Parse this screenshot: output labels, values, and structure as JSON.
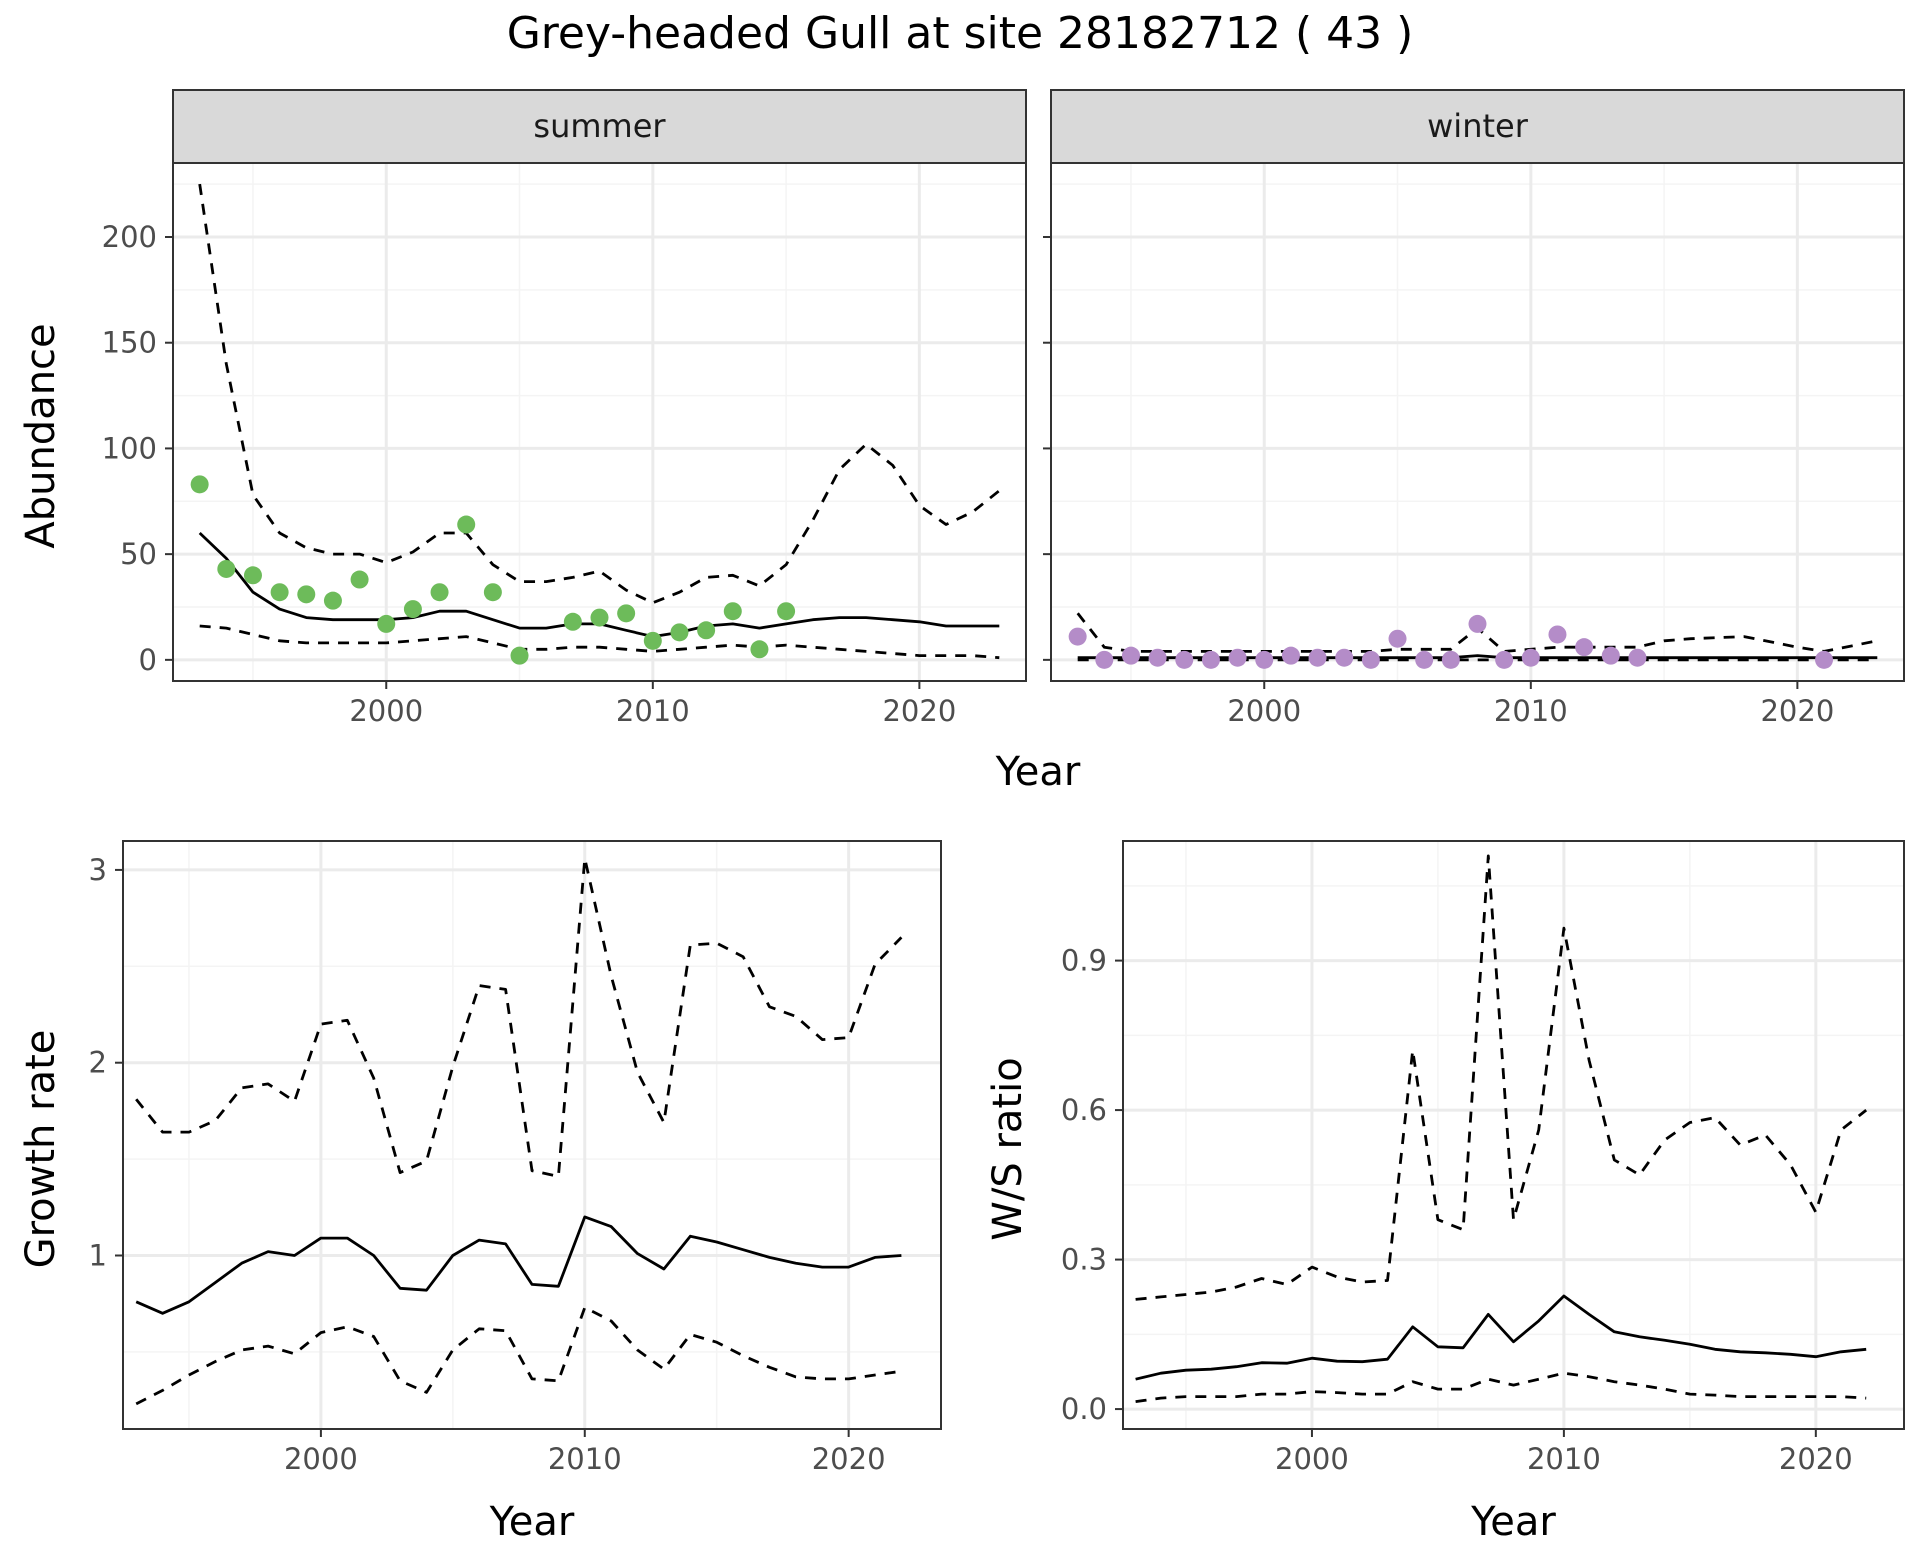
{
  "title": "Grey-headed Gull at site 28182712 ( 43 )",
  "colors": {
    "summer_points": "#6dbb5a",
    "winter_points": "#b48cc8",
    "line": "#000000",
    "strip_fill": "#d9d9d9",
    "grid_major": "#ebebeb",
    "grid_minor": "#f4f4f4",
    "panel_border": "#333333"
  },
  "chart_data": [
    {
      "type": "line",
      "panel": "summer",
      "strip_label": "summer",
      "xlabel": "Year",
      "ylabel": "Abundance",
      "xlim": [
        1992,
        2024
      ],
      "ylim": [
        -10,
        235
      ],
      "xticks": [
        2000,
        2010,
        2020
      ],
      "yticks": [
        0,
        50,
        100,
        150,
        200
      ],
      "grid": true,
      "points": {
        "x": [
          1993,
          1994,
          1995,
          1996,
          1997,
          1998,
          1999,
          2000,
          2001,
          2002,
          2003,
          2004,
          2005,
          2007,
          2008,
          2009,
          2010,
          2011,
          2012,
          2013,
          2014,
          2015
        ],
        "y": [
          83,
          43,
          40,
          32,
          31,
          28,
          38,
          17,
          24,
          32,
          64,
          32,
          2,
          18,
          20,
          22,
          9,
          13,
          14,
          23,
          5,
          23
        ]
      },
      "series": [
        {
          "style": "solid",
          "x": [
            1993,
            1994,
            1995,
            1996,
            1997,
            1998,
            1999,
            2000,
            2001,
            2002,
            2003,
            2004,
            2005,
            2006,
            2007,
            2008,
            2009,
            2010,
            2011,
            2012,
            2013,
            2014,
            2015,
            2016,
            2017,
            2018,
            2019,
            2020,
            2021,
            2022,
            2023
          ],
          "y": [
            60,
            48,
            32,
            24,
            20,
            19,
            19,
            19,
            20,
            23,
            23,
            19,
            15,
            15,
            17,
            17,
            14,
            11,
            13,
            16,
            17,
            15,
            17,
            19,
            20,
            20,
            19,
            18,
            16,
            16,
            16
          ]
        },
        {
          "style": "dashed",
          "x": [
            1993,
            1994,
            1995,
            1996,
            1997,
            1998,
            1999,
            2000,
            2001,
            2002,
            2003,
            2004,
            2005,
            2006,
            2007,
            2008,
            2009,
            2010,
            2011,
            2012,
            2013,
            2014,
            2015,
            2016,
            2017,
            2018,
            2019,
            2020,
            2021,
            2022,
            2023
          ],
          "y": [
            225,
            140,
            78,
            60,
            53,
            50,
            50,
            46,
            51,
            60,
            60,
            45,
            37,
            37,
            39,
            42,
            33,
            27,
            32,
            39,
            40,
            35,
            45,
            66,
            90,
            102,
            92,
            73,
            64,
            70,
            80
          ]
        },
        {
          "style": "dashed",
          "x": [
            1993,
            1994,
            1995,
            1996,
            1997,
            1998,
            1999,
            2000,
            2001,
            2002,
            2003,
            2004,
            2005,
            2006,
            2007,
            2008,
            2009,
            2010,
            2011,
            2012,
            2013,
            2014,
            2015,
            2016,
            2017,
            2018,
            2019,
            2020,
            2021,
            2022,
            2023
          ],
          "y": [
            16,
            15,
            12,
            9,
            8,
            8,
            8,
            8,
            9,
            10,
            11,
            8,
            5,
            5,
            6,
            6,
            5,
            4,
            5,
            6,
            7,
            6,
            7,
            6,
            5,
            4,
            3,
            2,
            2,
            2,
            1
          ]
        }
      ]
    },
    {
      "type": "line",
      "panel": "winter",
      "strip_label": "winter",
      "xlabel": "Year",
      "ylabel": "Abundance",
      "xlim": [
        1992,
        2024
      ],
      "ylim": [
        -10,
        235
      ],
      "xticks": [
        2000,
        2010,
        2020
      ],
      "yticks": [
        0,
        50,
        100,
        150,
        200
      ],
      "grid": true,
      "points": {
        "x": [
          1993,
          1994,
          1995,
          1996,
          1997,
          1998,
          1999,
          2000,
          2001,
          2002,
          2003,
          2004,
          2005,
          2006,
          2007,
          2008,
          2009,
          2010,
          2011,
          2012,
          2013,
          2014,
          2021
        ],
        "y": [
          11,
          0,
          2,
          1,
          0,
          0,
          1,
          0,
          2,
          1,
          1,
          0,
          10,
          0,
          0,
          17,
          0,
          1,
          12,
          6,
          2,
          1,
          0
        ]
      },
      "series": [
        {
          "style": "solid",
          "x": [
            1993,
            1995,
            2000,
            2005,
            2007,
            2008,
            2009,
            2011,
            2015,
            2020,
            2023
          ],
          "y": [
            1,
            1,
            1,
            1,
            1,
            2,
            1,
            1,
            1,
            1,
            1
          ]
        },
        {
          "style": "dashed",
          "x": [
            1993,
            1994,
            1995,
            1998,
            2000,
            2004,
            2005,
            2007,
            2008,
            2009,
            2011,
            2014,
            2015,
            2016,
            2018,
            2020,
            2021,
            2023
          ],
          "y": [
            22,
            6,
            4,
            4,
            4,
            4,
            5,
            5,
            15,
            4,
            6,
            6,
            9,
            10,
            11,
            6,
            4,
            9
          ]
        },
        {
          "style": "dashed",
          "x": [
            1993,
            1995,
            2000,
            2005,
            2010,
            2015,
            2020,
            2021,
            2023
          ],
          "y": [
            0,
            0,
            0,
            0,
            0,
            0,
            0,
            0,
            0
          ]
        }
      ]
    },
    {
      "type": "line",
      "panel": "growth",
      "xlabel": "Year",
      "ylabel": "Growth rate",
      "xlim": [
        1992.5,
        2023.5
      ],
      "ylim": [
        0.1,
        3.15
      ],
      "xticks": [
        2000,
        2010,
        2020
      ],
      "yticks": [
        1,
        2,
        3
      ],
      "grid": true,
      "series": [
        {
          "style": "solid",
          "x": [
            1993,
            1994,
            1995,
            1996,
            1997,
            1998,
            1999,
            2000,
            2001,
            2002,
            2003,
            2004,
            2005,
            2006,
            2007,
            2008,
            2009,
            2010,
            2011,
            2012,
            2013,
            2014,
            2015,
            2016,
            2017,
            2018,
            2019,
            2020,
            2021,
            2022
          ],
          "y": [
            0.76,
            0.7,
            0.76,
            0.86,
            0.96,
            1.02,
            1.0,
            1.09,
            1.09,
            1.0,
            0.83,
            0.82,
            1.0,
            1.08,
            1.06,
            0.85,
            0.84,
            1.2,
            1.15,
            1.01,
            0.93,
            1.1,
            1.07,
            1.03,
            0.99,
            0.96,
            0.94,
            0.94,
            0.99,
            1.0
          ]
        },
        {
          "style": "dashed",
          "x": [
            1993,
            1994,
            1995,
            1996,
            1997,
            1998,
            1999,
            2000,
            2001,
            2002,
            2003,
            2004,
            2005,
            2006,
            2007,
            2008,
            2009,
            2010,
            2011,
            2012,
            2013,
            2014,
            2015,
            2016,
            2017,
            2018,
            2019,
            2020,
            2021,
            2022
          ],
          "y": [
            1.81,
            1.64,
            1.64,
            1.7,
            1.87,
            1.89,
            1.8,
            2.2,
            2.22,
            1.92,
            1.43,
            1.49,
            1.98,
            2.4,
            2.38,
            1.44,
            1.41,
            3.06,
            2.45,
            1.95,
            1.69,
            2.61,
            2.62,
            2.55,
            2.29,
            2.24,
            2.12,
            2.13,
            2.51,
            2.65
          ]
        },
        {
          "style": "dashed",
          "x": [
            1993,
            1994,
            1995,
            1996,
            1997,
            1998,
            1999,
            2000,
            2001,
            2002,
            2003,
            2004,
            2005,
            2006,
            2007,
            2008,
            2009,
            2010,
            2011,
            2012,
            2013,
            2014,
            2015,
            2016,
            2017,
            2018,
            2019,
            2020,
            2021,
            2022
          ],
          "y": [
            0.23,
            0.3,
            0.38,
            0.45,
            0.51,
            0.53,
            0.49,
            0.6,
            0.63,
            0.58,
            0.35,
            0.29,
            0.51,
            0.62,
            0.61,
            0.36,
            0.35,
            0.73,
            0.66,
            0.51,
            0.41,
            0.59,
            0.55,
            0.48,
            0.42,
            0.37,
            0.36,
            0.36,
            0.38,
            0.4
          ]
        }
      ]
    },
    {
      "type": "line",
      "panel": "ratio",
      "xlabel": "Year",
      "ylabel": "W/S ratio",
      "xlim": [
        1992.5,
        2023.5
      ],
      "ylim": [
        -0.04,
        1.14
      ],
      "xticks": [
        2000,
        2010,
        2020
      ],
      "yticks": [
        0.0,
        0.3,
        0.6,
        0.9
      ],
      "ytick_labels": [
        "0.0",
        "0.3",
        "0.6",
        "0.9"
      ],
      "grid": true,
      "series": [
        {
          "style": "solid",
          "x": [
            1993,
            1994,
            1995,
            1996,
            1997,
            1998,
            1999,
            2000,
            2001,
            2002,
            2003,
            2004,
            2005,
            2006,
            2007,
            2008,
            2009,
            2010,
            2011,
            2012,
            2013,
            2014,
            2015,
            2016,
            2017,
            2018,
            2019,
            2020,
            2021,
            2022
          ],
          "y": [
            0.06,
            0.072,
            0.078,
            0.08,
            0.085,
            0.093,
            0.092,
            0.102,
            0.096,
            0.095,
            0.1,
            0.165,
            0.125,
            0.123,
            0.19,
            0.135,
            0.177,
            0.227,
            0.19,
            0.155,
            0.145,
            0.138,
            0.13,
            0.12,
            0.115,
            0.113,
            0.11,
            0.105,
            0.115,
            0.12
          ]
        },
        {
          "style": "dashed",
          "x": [
            1993,
            1994,
            1995,
            1996,
            1997,
            1998,
            1999,
            2000,
            2001,
            2002,
            2003,
            2004,
            2005,
            2006,
            2007,
            2008,
            2009,
            2010,
            2011,
            2012,
            2013,
            2014,
            2015,
            2016,
            2017,
            2018,
            2019,
            2020,
            2021,
            2022
          ],
          "y": [
            0.22,
            0.225,
            0.23,
            0.235,
            0.245,
            0.262,
            0.25,
            0.285,
            0.265,
            0.255,
            0.258,
            0.72,
            0.38,
            0.36,
            1.11,
            0.38,
            0.56,
            0.965,
            0.7,
            0.5,
            0.47,
            0.54,
            0.575,
            0.585,
            0.53,
            0.55,
            0.49,
            0.395,
            0.56,
            0.6
          ]
        },
        {
          "style": "dashed",
          "x": [
            1993,
            1994,
            1995,
            1996,
            1997,
            1998,
            1999,
            2000,
            2001,
            2002,
            2003,
            2004,
            2005,
            2006,
            2007,
            2008,
            2009,
            2010,
            2011,
            2012,
            2013,
            2014,
            2015,
            2016,
            2017,
            2018,
            2019,
            2020,
            2021,
            2022
          ],
          "y": [
            0.015,
            0.022,
            0.025,
            0.025,
            0.025,
            0.03,
            0.03,
            0.035,
            0.033,
            0.03,
            0.03,
            0.055,
            0.04,
            0.04,
            0.06,
            0.048,
            0.06,
            0.072,
            0.065,
            0.055,
            0.048,
            0.04,
            0.03,
            0.028,
            0.025,
            0.025,
            0.025,
            0.025,
            0.025,
            0.022
          ]
        }
      ]
    }
  ]
}
